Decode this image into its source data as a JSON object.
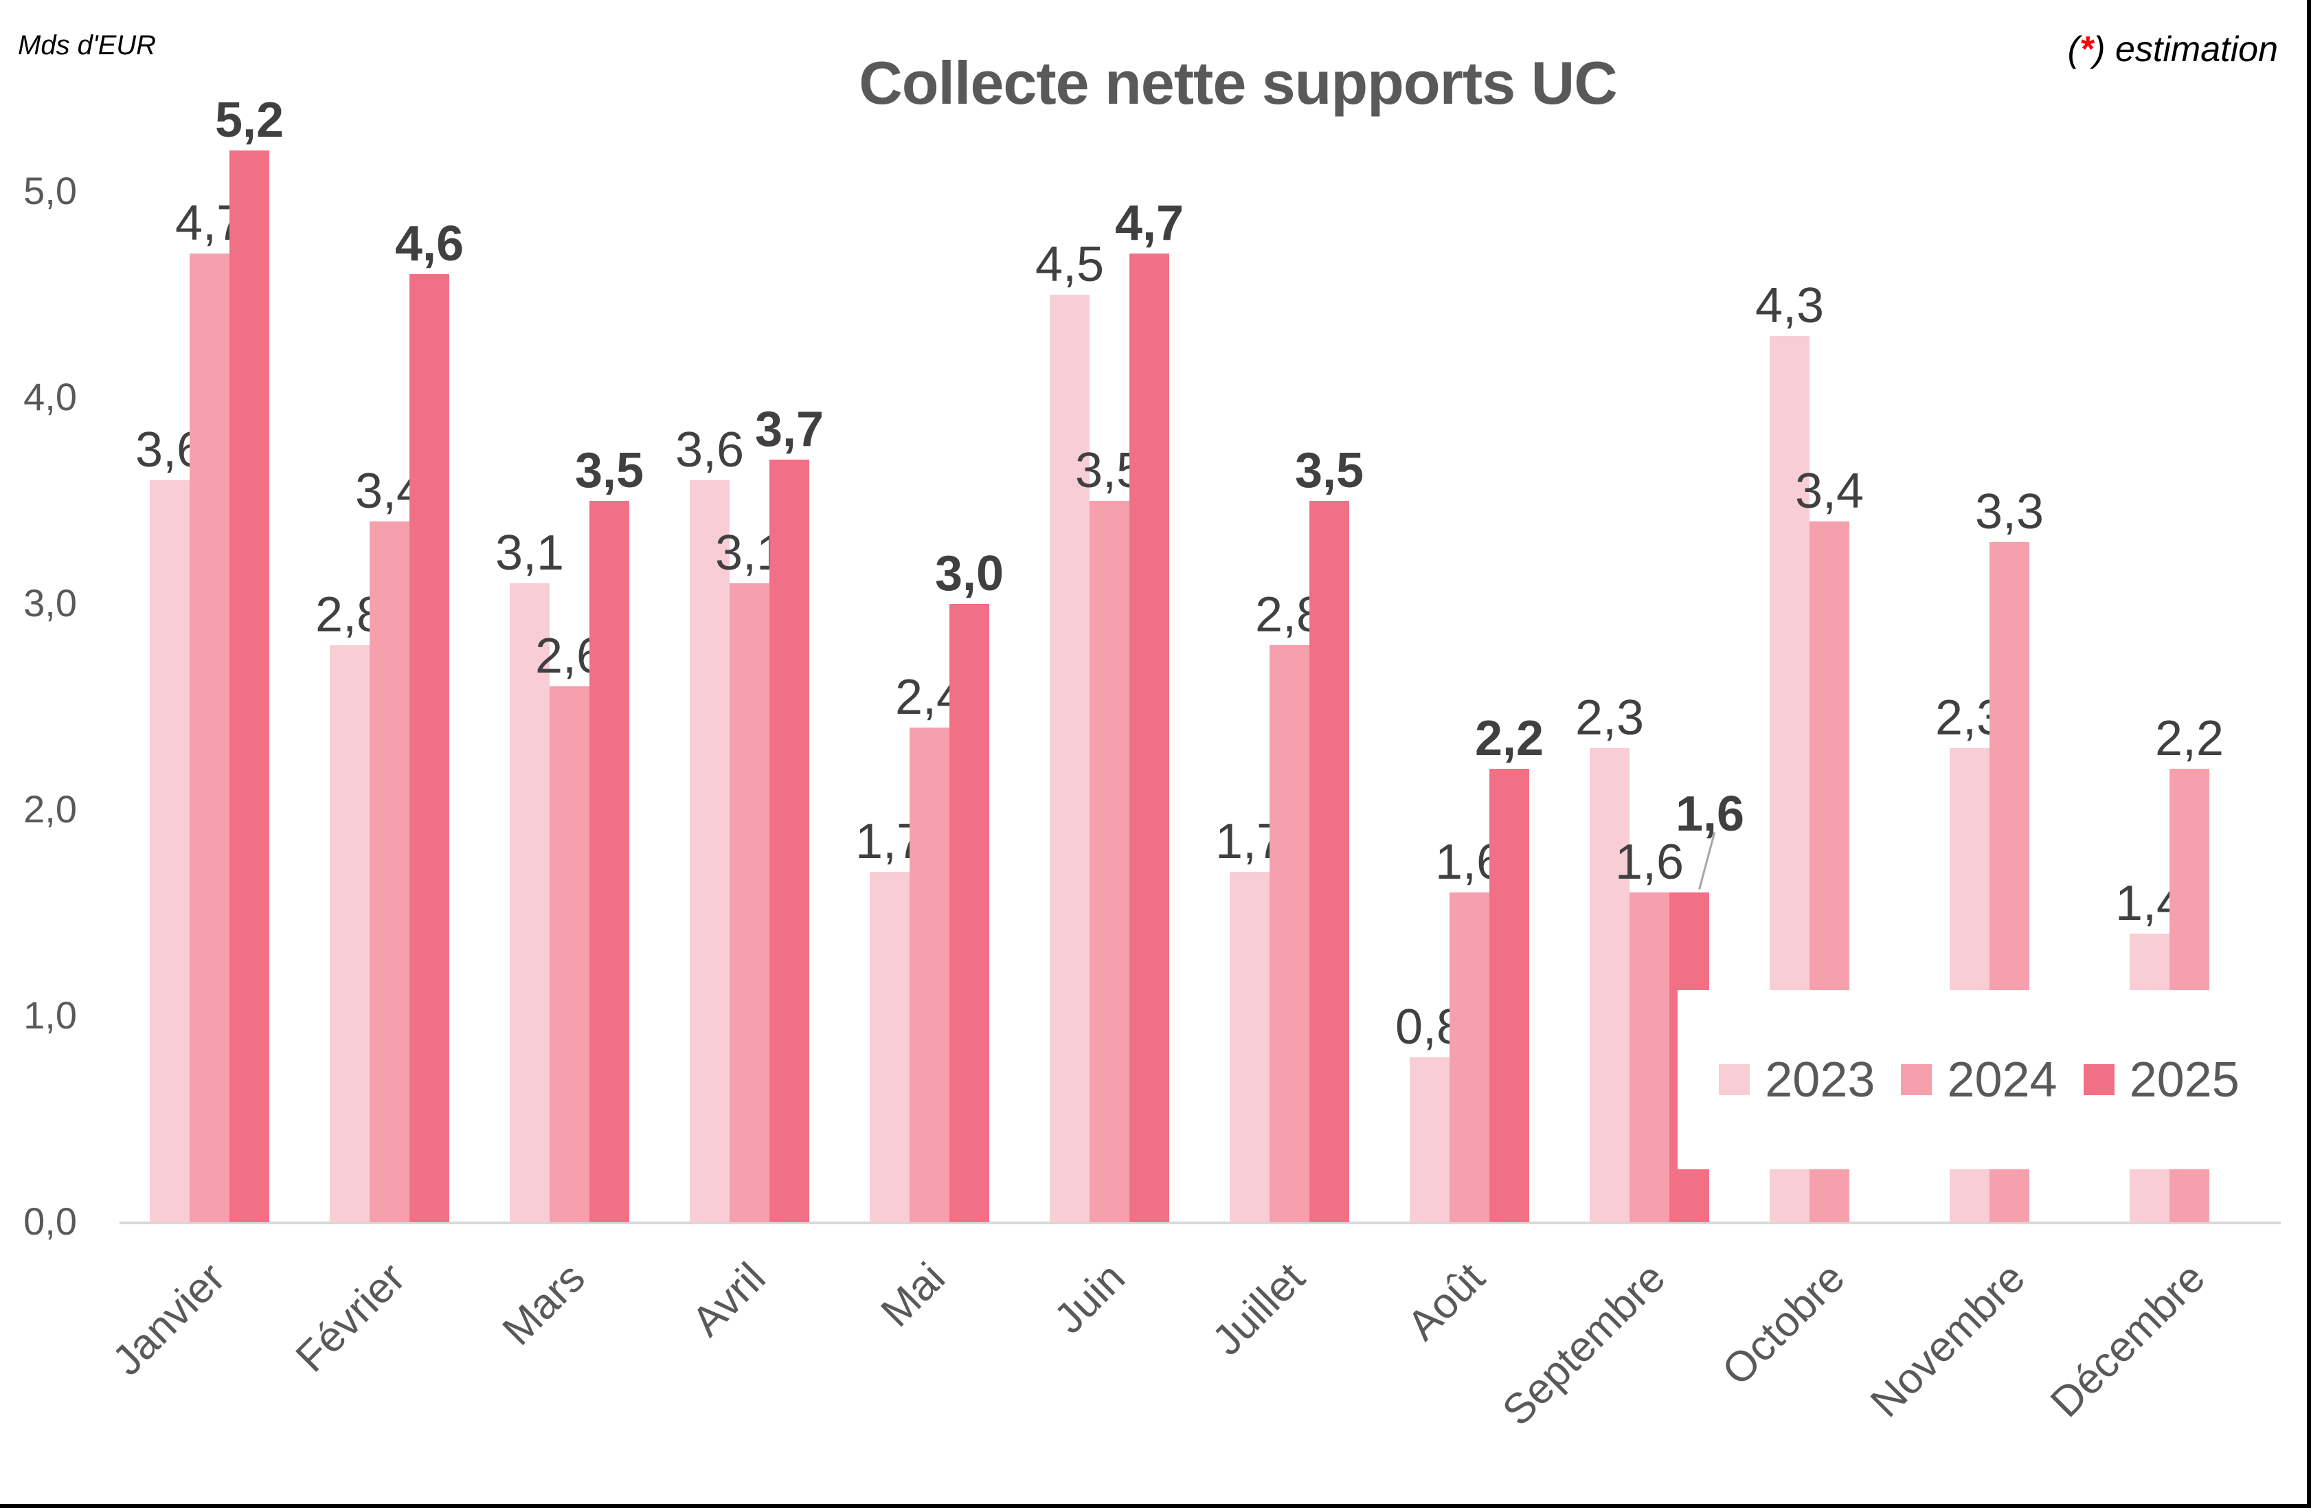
{
  "header": {
    "unit_label": "Mds d'EUR",
    "title": "Collecte nette supports UC",
    "note_open": "(",
    "note_star": "*",
    "note_close": ") estimation"
  },
  "colors": {
    "2023": "#f9cdd5",
    "2024": "#f6a0ae",
    "2025": "#f27086",
    "axis": "#d9d9d9",
    "title": "#595959",
    "star": "#ff0000"
  },
  "legend": {
    "items": [
      {
        "label": "2023",
        "color": "#f9cdd5"
      },
      {
        "label": "2024",
        "color": "#f6a0ae"
      },
      {
        "label": "2025",
        "color": "#f27086"
      }
    ]
  },
  "chart_data": {
    "type": "bar",
    "title": "Collecte nette supports UC",
    "ylabel": "Mds d'EUR",
    "xlabel": "",
    "annotation": "(*) estimation",
    "ylim": [
      0,
      5.2
    ],
    "yticks": [
      "0,0",
      "1,0",
      "2,0",
      "3,0",
      "4,0",
      "5,0"
    ],
    "grid": false,
    "legend_position": "inside-bottom-right",
    "categories": [
      "Janvier",
      "Février",
      "Mars",
      "Avril",
      "Mai",
      "Juin",
      "Juillet",
      "Août",
      "Septembre",
      "Octobre",
      "Novembre",
      "Décembre"
    ],
    "series": [
      {
        "name": "2023",
        "values": [
          3.6,
          2.8,
          3.1,
          3.6,
          1.7,
          4.5,
          1.7,
          0.8,
          2.3,
          4.3,
          2.3,
          1.4
        ],
        "labels": [
          "3,6",
          "2,8",
          "3,1",
          "3,6",
          "1,7",
          "4,5",
          "1,7",
          "0,8",
          "2,3",
          "4,3",
          "2,3",
          "1,4"
        ],
        "bold": false
      },
      {
        "name": "2024",
        "values": [
          4.7,
          3.4,
          2.6,
          3.1,
          2.4,
          3.5,
          2.8,
          1.6,
          1.6,
          3.4,
          3.3,
          2.2
        ],
        "labels": [
          "4,7",
          "3,4",
          "2,6",
          "3,1",
          "2,4",
          "3,5",
          "2,8",
          "1,6",
          "1,6",
          "3,4",
          "3,3",
          "2,2"
        ],
        "bold": false
      },
      {
        "name": "2025",
        "values": [
          5.2,
          4.6,
          3.5,
          3.7,
          3.0,
          4.7,
          3.5,
          2.2,
          1.6,
          null,
          null,
          null
        ],
        "labels": [
          "5,2",
          "4,6",
          "3,5",
          "3,7",
          "3,0",
          "4,7",
          "3,5",
          "2,2",
          "1,6",
          null,
          null,
          null
        ],
        "bold": true
      }
    ]
  }
}
